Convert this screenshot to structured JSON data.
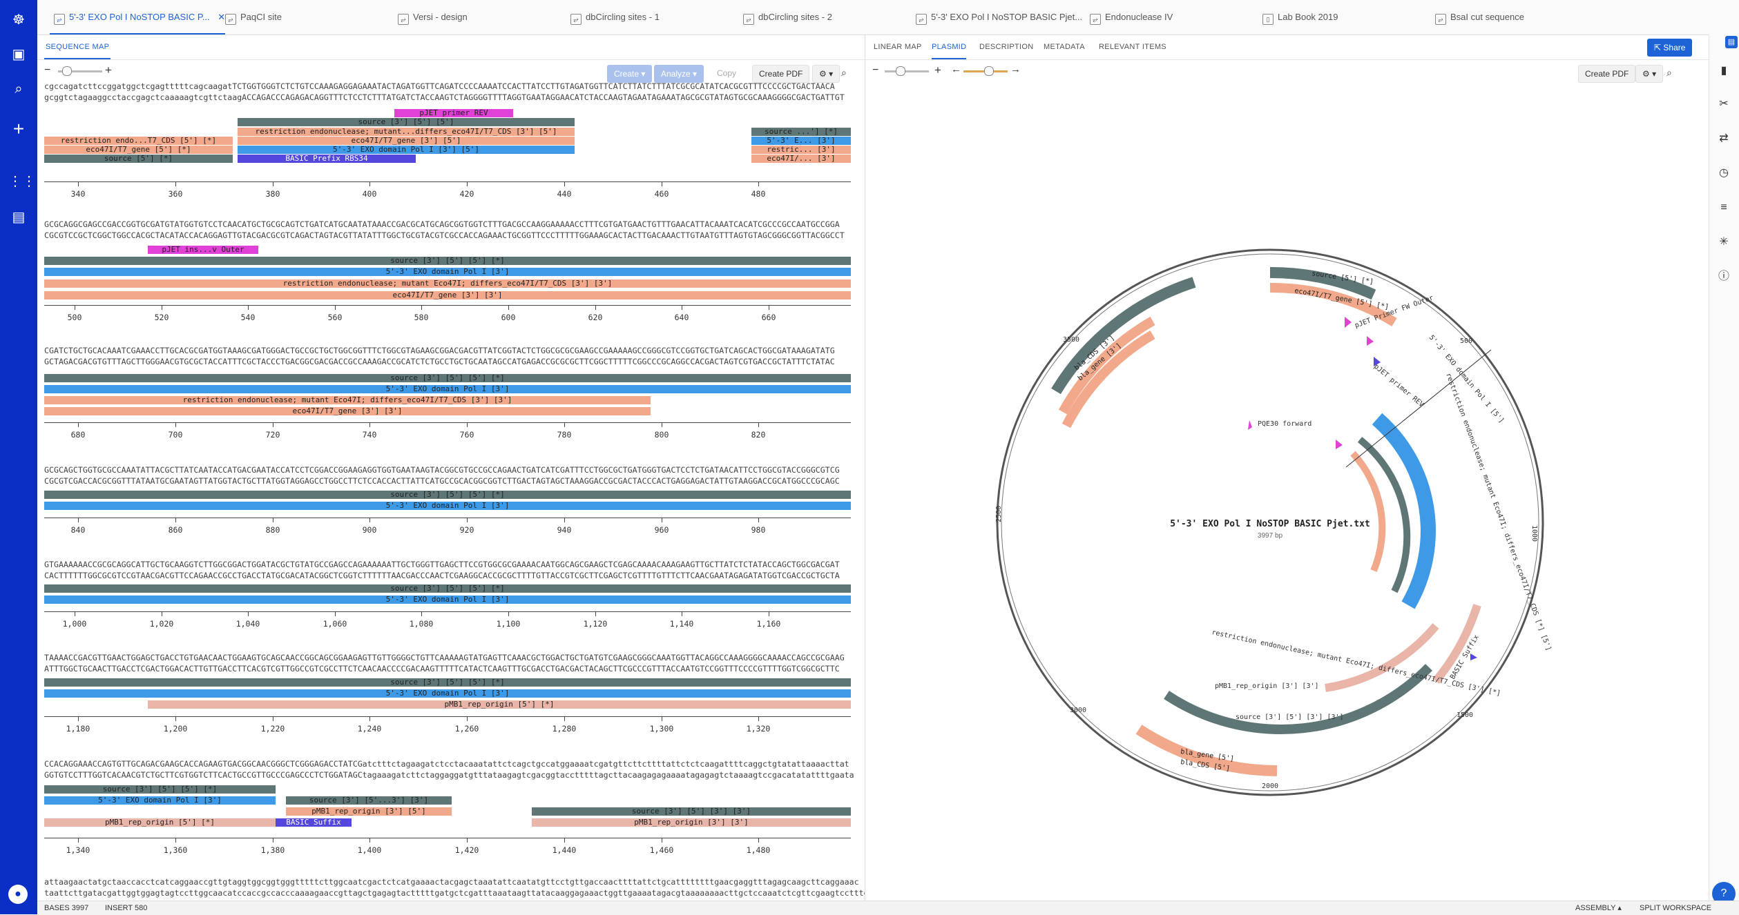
{
  "tabs": [
    {
      "label": "5'-3' EXO Pol I NoSTOP BASIC P...",
      "active": true,
      "icon": "sequence-icon"
    },
    {
      "label": "PaqCI site",
      "icon": "sequence-icon"
    },
    {
      "label": "Versi - design",
      "icon": "sequence-icon"
    },
    {
      "label": "dbCircling sites - 1",
      "icon": "sequence-icon"
    },
    {
      "label": "dbCircling sites - 2",
      "icon": "sequence-icon"
    },
    {
      "label": "5'-3' EXO Pol I NoSTOP BASIC Pjet...",
      "icon": "sequence-icon"
    },
    {
      "label": "Endonuclease IV",
      "icon": "sequence-icon"
    },
    {
      "label": "Lab Book 2019",
      "icon": "notebook-icon"
    },
    {
      "label": "BsaI cut sequence",
      "icon": "sequence-icon"
    }
  ],
  "left": {
    "subtab": "SEQUENCE MAP",
    "toolbar": {
      "create": "Create",
      "analyze": "Analyze",
      "copy": "Copy",
      "create_pdf": "Create PDF"
    },
    "rows": [
      {
        "top": "cgccagatcttccggatggctcgagtttttcagcaagatTCTGGTGGGTCTCTGTCCAAAGAGGAGAAATACTAGATGGTTCAGATCCCCAAAATCCACTTATCCTTGTAGATGGTTCATCTTATCTTTATCGCGCATATCACGCGTTTCCCCGCTGACTAACA",
        "bottom": "gcggtctagaaggcctaccgagctcaaaaagtcgttctaagACCAGACCCAGAGACAGGTTTCTCCTCTTTATGATCTACCAAGTCTAGGGGTTTTAGGTGAATAGGAACATCTACCAAGTAGAATAGAAATAGCGCGTATAGTGCGCAAAGGGGCGACTGATTGT",
        "ticks": [
          "340",
          "360",
          "380",
          "400",
          "420",
          "440",
          "460",
          "480"
        ]
      },
      {
        "top": "GCGCAGGCGAGCCGACCGGTGCGATGTATGGTGTCCTCAACATGCTGCGCAGTCTGATCATGCAATATAAACCGACGCATGCAGCGGTGGTCTTTGACGCCAAGGAAAAACCTTTCGTGATGAACTGTTTGAACATTACAAATCACATCGCCCGCCAATGCCGGA",
        "bottom": "CGCGTCCGCTCGGCTGGCCACGCTACATACCACAGGAGTTGTACGACGCGTCAGACTAGTACGTTATATTTGGCTGCGTACGTCGCCACCAGAAACTGCGGTTCCCTTTTTGGAAAGCACTACTTGACAAACTTGTAATGTTTAGTGTAGCGGGCGGTTACGGCCT",
        "ticks": [
          "500",
          "520",
          "540",
          "560",
          "580",
          "600",
          "620",
          "640",
          "660"
        ]
      },
      {
        "top": "CGATCTGCTGCACAAATCGAAACCTTGCACGCGATGGTAAAGCGATGGGACTGCCGCTGCTGGCGGTTTCTGGCGTAGAAGCGGACGACGTTATCGGTACTCTGGCGCGCGAAGCCGAAAAAGCCGGGCGTCCGGTGCTGATCAGCACTGGCGATAAAGATATG",
        "bottom": "GCTAGACGACGTGTTTAGCTTGGGAACGTGCGCTACCATTTCGCTACCCTGACGGCGACGACCGCCAAAGACCGCATCTCTGCCTGCTGCAATAGCCATGAGACCGCGCGCTTCGGCTTTTTCGGCCCGCAGGCCACGACTAGTCGTGACCGCTATTTCTATAC",
        "ticks": [
          "680",
          "700",
          "720",
          "740",
          "760",
          "780",
          "800",
          "820"
        ]
      },
      {
        "top": "GCGCAGCTGGTGCGCCAAATATTACGCTTATCAATACCATGACGAATACCATCCTCGGACCGGAAGAGGTGGTGAATAAGTACGGCGTGCCGCCAGAACTGATCATCGATTTCCTGGCGCTGATGGGTGACTCCTCTGATAACATTCCTGGCGTACCGGGCGTCG",
        "bottom": "CGCGTCGACCACGCGGTTTATAATGCGAATAGTTATGGTACTGCTTATGGTAGGAGCCTGGCCTTCTCCACCACTTATTCATGCCGCACGGCGGTCTTGACTAGTAGCTAAAGGACCGCGACTACCCACTGAGGAGACTATTGTAAGGACCGCATGGCCCGCAGC",
        "ticks": [
          "840",
          "860",
          "880",
          "900",
          "920",
          "940",
          "960",
          "980"
        ]
      },
      {
        "top": "GTGAAAAAACCGCGCAGGCATTGCTGCAAGGTCTTGGCGGACTGGATACGCTGTATGCCGAGCCAGAAAAAATTGCTGGGTTGAGCTTCCGTGGCGCGAAAACAATGGCAGCGAAGCTCGAGCAAAACAAAGAAGTTGCTTATCTCTATACCAGCTGGCGACGAT",
        "bottom": "CACTTTTTTGGCGCGTCCGTAACGACGTTCCAGAACCGCCTGACCTATGCGACATACGGCTCGGTCTTTTTTAACGACCCAACTCGAAGGCACCGCGCTTTTGTTACCGTCGCTTCGAGCTCGTTTTGTTTCTTCAACGAATAGAGATATGGTCGACCGCTGCTA",
        "ticks": [
          "1,000",
          "1,020",
          "1,040",
          "1,060",
          "1,080",
          "1,100",
          "1,120",
          "1,140",
          "1,160"
        ]
      },
      {
        "top": "TAAAACCGACGTTGAACTGGAGCTGACCTGTGAACAACTGGAAGTGCAGCAACCGGCAGCGGAAGAGTTGTTGGGGCTGTTCAAAAAGTATGAGTTCAAACGCTGGACTGCTGATGTCGAAGCGGGCAAATGGTTACAGGCCAAAGGGGCAAAACCAGCCGCGAAG",
        "bottom": "ATTTGGCTGCAACTTGACCTCGACTGGACACTTGTTGACCTTCACGTCGTTGGCCGTCGCCTTCTCAACAACCCCGACAAGTTTTTCATACTCAAGTTTGCGACCTGACGACTACAGCTTCGCCCGTTTACCAATGTCCGGTTTCCCCGTTTTGGTCGGCGCTTC",
        "ticks": [
          "1,180",
          "1,200",
          "1,220",
          "1,240",
          "1,260",
          "1,280",
          "1,300",
          "1,320"
        ]
      },
      {
        "top": "CCACAGGAAACCAGTGTTGCAGACGAAGCACCAGAAGTGACGGCAACGGGCTCGGGAGACCTATCGatctttctagaagatctcctacaaatattctcagctgccatggaaaatcgatgttcttcttttattctctcaagattttcaggctgtatattaaaacttat",
        "bottom": "GGTGTCCTTTGGTCACAACGTCTGCTTCGTGGTCTTCACTGCCGTTGCCCGAGCCCTCTGGATAGCtagaaagatcttctaggaggatgtttataagagtcgacggtacctttttagcttacaagagagaaaatagagagtctaaaagtccgacatatattttgaata",
        "ticks": [
          "1,340",
          "1,360",
          "1,380",
          "1,400",
          "1,420",
          "1,440",
          "1,460",
          "1,480"
        ]
      },
      {
        "top": "attaagaactatgctaaccacctcatcaggaaccgttgtaggtggcggtgggtttttcttggcaatcgactctcatgaaaactacgagctaaatattcaatatgttcctgttgaccaacttttattctgcattttttttgaacgaggtttagagcaagcttcaggaaac",
        "bottom": "taattcttgatacgattggtggagtagtccttggcaacatccaccgccacccaaaagaaccgttagctgagagtactttttgatgctcgatttaaataagttatacaaggagaaactggttgaaaatagacgtaaaaaaaacttgctccaaatctcgttcgaagtcctttg"
      }
    ],
    "features": {
      "pjet_primer_rev": "pJET primer REV",
      "source_3_5_5": "source [3'] [5'] [5']",
      "restriction_mutant_trunc": "restriction endonuclease; mutant...differs_eco47I/T7_CDS [3'] [5']",
      "eco47i_gene_3_5": "eco47I/T7_gene [3'] [5']",
      "exo_domain_3_5": "5'-3' EXO domain Pol I [3'] [5']",
      "basic_prefix": "BASIC Prefix RBS34",
      "restriction_t7_cds": "restriction endo...T7_CDS [5'] [*]",
      "eco47i_gene_5": "eco47I/T7_gene [5'] [*]",
      "source_5": "source [5'] [*]",
      "source_right": "source ...'] [*]",
      "exo_right": "5'-3' E... [3']",
      "restric_right": "restric... [3']",
      "eco47_right": "eco47I/... [3']",
      "pjet_ins_outer": "pJET ins...v Outer",
      "source_full": "source [3'] [5'] [5'] [*]",
      "exo_full": "5'-3' EXO domain Pol I [3']",
      "restriction_full": "restriction endonuclease; mutant Eco47I; differs_eco47I/T7_CDS [3'] [3']",
      "eco47_full": "eco47I/T7_gene [3'] [3']",
      "pmb1_5": "pMB1_rep_origin [5'] [*]",
      "source_exo_5": "source [3'] [5'] [5'] [*]",
      "exo_5_3": "5'-3' EXO domain Pol I [3']",
      "source_trunc": "source [3'] [5'...3'] [3']",
      "pmb1_3_5": "pMB1_rep_origin [3'] [5']",
      "basic_suffix": "BASIC Suffix",
      "source_3_5_3_3": "source [3'] [5'] [3'] [3']",
      "pmb1_3_3": "pMB1_rep_origin [3'] [3']"
    }
  },
  "right": {
    "subtabs": [
      "LINEAR MAP",
      "PLASMID",
      "DESCRIPTION",
      "METADATA",
      "RELEVANT ITEMS"
    ],
    "active_subtab": "PLASMID",
    "share": "Share",
    "create_pdf": "Create PDF",
    "plasmid": {
      "name": "5'-3' EXO Pol I NoSTOP BASIC Pjet.txt",
      "length": "3997 bp",
      "ticks": [
        "500",
        "1000",
        "1500",
        "2000",
        "2500",
        "3000",
        "3500"
      ],
      "labels": {
        "pqe30": "PQE30 forward",
        "restriction_inner": "restriction endonuclease; mutant Eco47I; differs_eco47I/T7_CDS [3'] [*]",
        "pmb1_inner": "pMB1_rep_origin [3'] [3']",
        "source_lower": "source [3'] [5'] [3'] [3']",
        "bla_gene": "bla_gene [5']",
        "bla_cds": "bla_CDS [5']",
        "bla_cds_top": "bla_CDS [3']",
        "bla_gene_top": "bla_gene [3']",
        "source_top": "source [5'] [*]",
        "eco47_top": "eco47I/T7_gene [5'] [*]",
        "pjet_fw": "pJET Primer FW Outer",
        "pjet_rev": "pJET primer REV",
        "basic_suffix": "BASIC Suffix",
        "exo_label": "5'-3' EXO domain Pol I [5']",
        "restriction_right": "restriction endonuclease; mutant Eco47I; differs_eco47I/T7_CDS [*] [5']"
      }
    }
  },
  "status": {
    "bases_label": "BASES",
    "bases": "3997",
    "insert_label": "INSERT",
    "insert": "580",
    "assembly": "ASSEMBLY",
    "split": "SPLIT WORKSPACE"
  },
  "colors": {
    "nav": "#0b2fc5",
    "accent": "#1e63d6",
    "source": "#5e7676",
    "exo": "#3e9ae6",
    "restriction": "#f2a98b",
    "primer": "#e041d6",
    "basic": "#5447dc",
    "pmb1": "#e8b5a8"
  }
}
